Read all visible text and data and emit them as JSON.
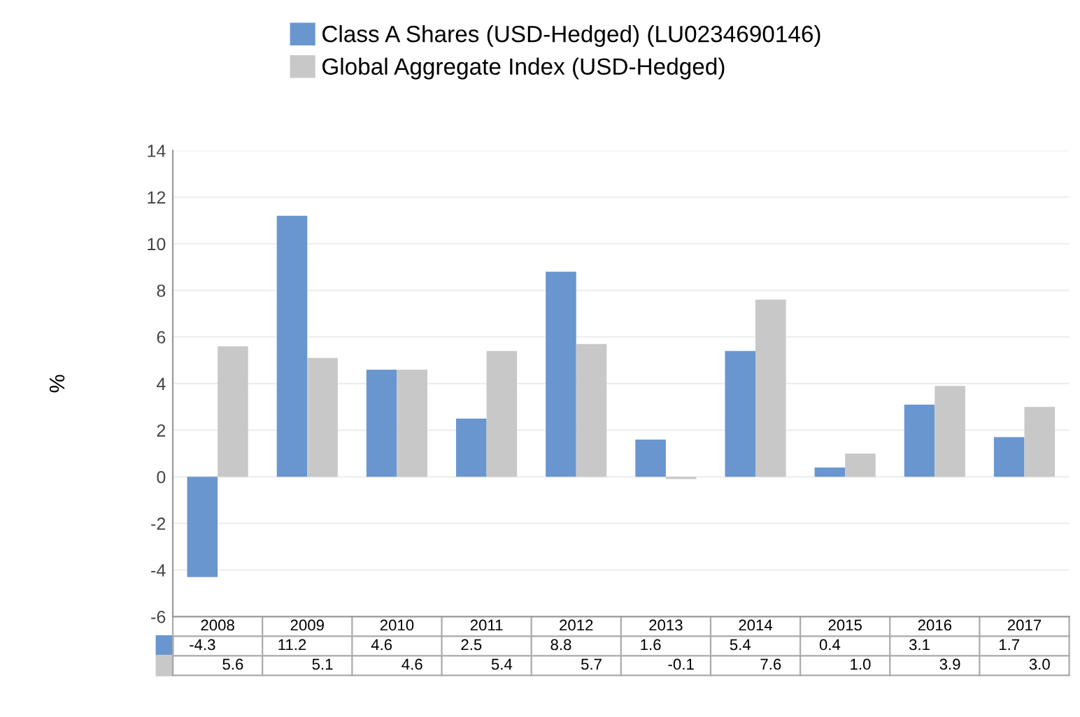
{
  "chart_data": {
    "type": "bar",
    "ylabel": "%",
    "categories": [
      "2008",
      "2009",
      "2010",
      "2011",
      "2012",
      "2013",
      "2014",
      "2015",
      "2016",
      "2017"
    ],
    "series": [
      {
        "name": "Class A Shares (USD-Hedged) (LU0234690146)",
        "color": "#6a96cf",
        "values": [
          -4.3,
          11.2,
          4.6,
          2.5,
          8.8,
          1.6,
          5.4,
          0.4,
          3.1,
          1.7
        ],
        "value_labels": [
          "-4.3",
          "11.2",
          "4.6",
          "2.5",
          "8.8",
          "1.6",
          "5.4",
          "0.4",
          "3.1",
          "1.7"
        ]
      },
      {
        "name": "Global Aggregate Index (USD-Hedged)",
        "color": "#c8c8c8",
        "values": [
          5.6,
          5.1,
          4.6,
          5.4,
          5.7,
          -0.1,
          7.6,
          1.0,
          3.9,
          3.0
        ],
        "value_labels": [
          "5.6",
          "5.1",
          "4.6",
          "5.4",
          "5.7",
          "-0.1",
          "7.6",
          "1.0",
          "3.9",
          "3.0"
        ]
      }
    ],
    "ylim": [
      -6,
      14
    ],
    "yticks": [
      -6,
      -4,
      -2,
      0,
      2,
      4,
      6,
      8,
      10,
      12,
      14
    ],
    "grid": "y",
    "legend": "top"
  }
}
